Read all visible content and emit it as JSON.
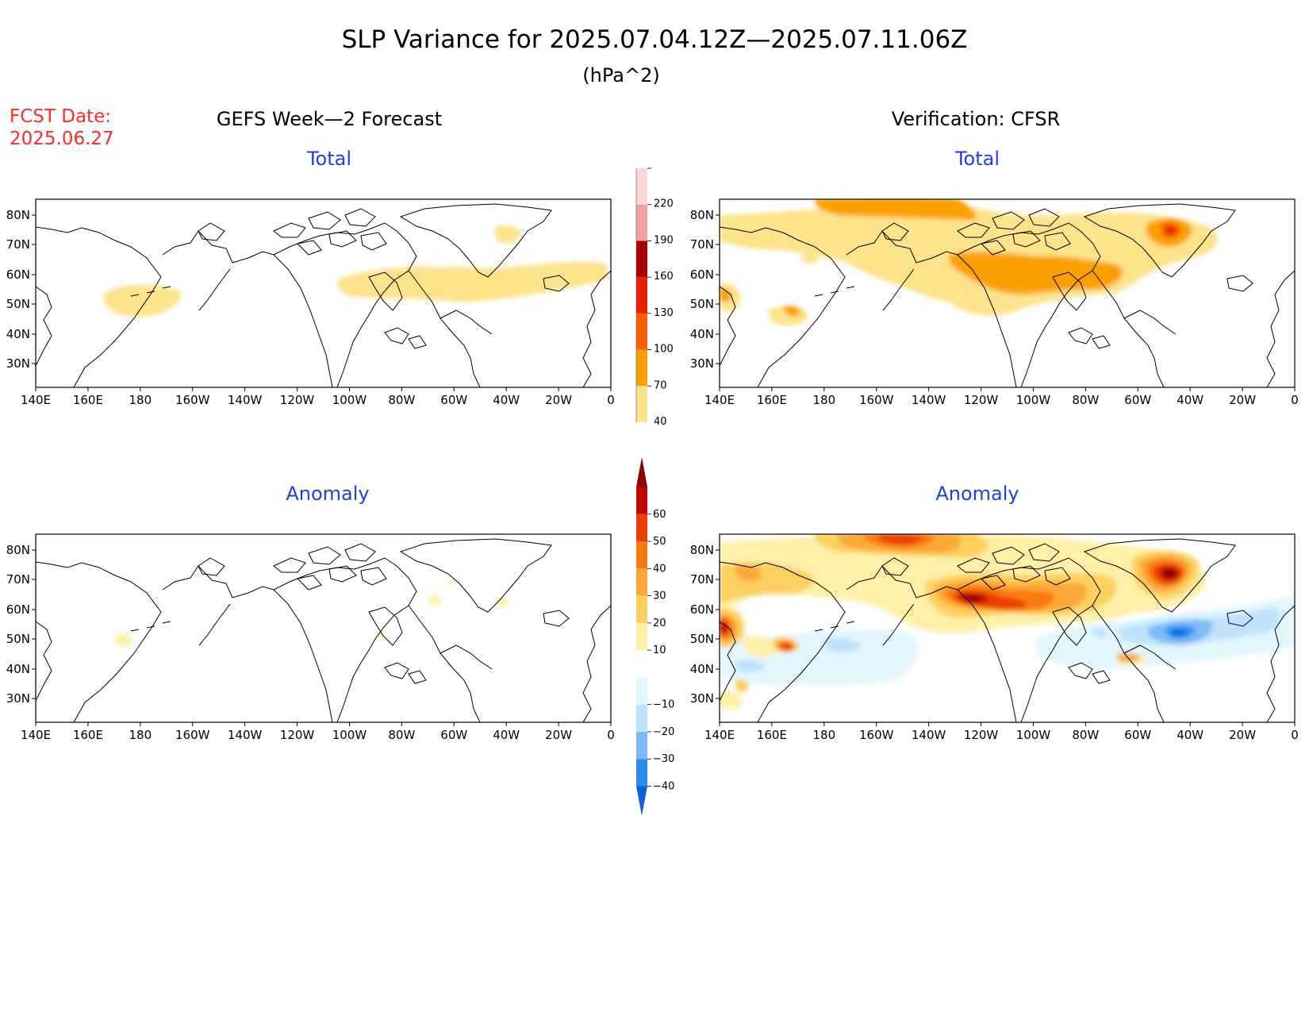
{
  "title": "SLP Variance for 2025.07.04.12Z—2025.07.11.06Z",
  "units": "(hPa^2)",
  "fcst_date": {
    "label": "FCST Date:",
    "value": "2025.06.27"
  },
  "columns": {
    "left": "GEFS Week—2 Forecast",
    "right": "Verification: CFSR"
  },
  "panel_titles": {
    "total": "Total",
    "anomaly": "Anomaly"
  },
  "lat_labels": [
    "80N",
    "70N",
    "60N",
    "50N",
    "40N",
    "30N"
  ],
  "lon_labels": [
    "140E",
    "160E",
    "180",
    "160W",
    "140W",
    "120W",
    "100W",
    "80W",
    "60W",
    "40W",
    "20W",
    "0"
  ],
  "colors": {
    "title_blue": "#1f3fe0",
    "fcst_red": "#ff2a2a",
    "coast": "#000000"
  },
  "colorbar_total": {
    "levels": [
      "40",
      "70",
      "100",
      "130",
      "160",
      "190",
      "220"
    ],
    "colors": [
      "#fde38a",
      "#fca000",
      "#fb6000",
      "#e82000",
      "#a80000",
      "#f2a0a0",
      "#fbd8d8"
    ]
  },
  "colorbar_anomaly": {
    "levels": [
      "−40",
      "−30",
      "−20",
      "−10",
      "10",
      "20",
      "30",
      "40",
      "50",
      "60"
    ],
    "colors": [
      "#1060d8",
      "#2a8cf0",
      "#7ebaf8",
      "#bfe2fc",
      "#e2f6fe",
      "#ffffff",
      "#fff0a8",
      "#fdd060",
      "#fca838",
      "#fb7a10",
      "#ec3c00",
      "#c00800",
      "#900000"
    ]
  }
}
